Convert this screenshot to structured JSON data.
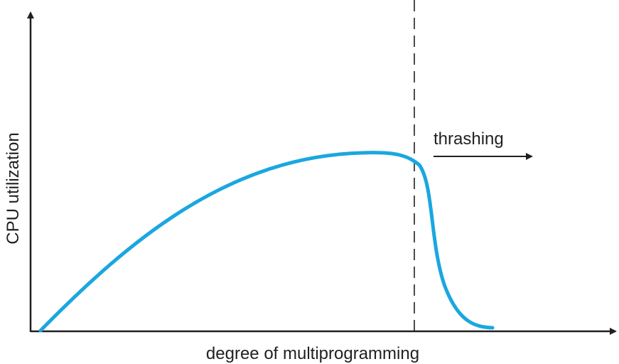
{
  "chart_data": {
    "type": "line",
    "title": "",
    "xlabel": "degree of multiprogramming",
    "ylabel": "CPU utilization",
    "grid": false,
    "legend": "none",
    "annotations": {
      "thrashing_label": "thrashing"
    },
    "colors": {
      "curve": "#1aa7e0",
      "axes": "#231f20"
    }
  }
}
